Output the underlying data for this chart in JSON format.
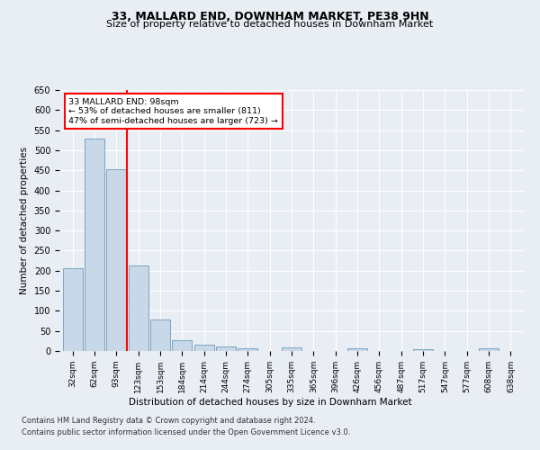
{
  "title": "33, MALLARD END, DOWNHAM MARKET, PE38 9HN",
  "subtitle": "Size of property relative to detached houses in Downham Market",
  "xlabel": "Distribution of detached houses by size in Downham Market",
  "ylabel": "Number of detached properties",
  "footnote1": "Contains HM Land Registry data © Crown copyright and database right 2024.",
  "footnote2": "Contains public sector information licensed under the Open Government Licence v3.0.",
  "categories": [
    "32sqm",
    "62sqm",
    "93sqm",
    "123sqm",
    "153sqm",
    "184sqm",
    "214sqm",
    "244sqm",
    "274sqm",
    "305sqm",
    "335sqm",
    "365sqm",
    "396sqm",
    "426sqm",
    "456sqm",
    "487sqm",
    "517sqm",
    "547sqm",
    "577sqm",
    "608sqm",
    "638sqm"
  ],
  "values": [
    207,
    530,
    452,
    212,
    78,
    26,
    15,
    12,
    7,
    0,
    8,
    0,
    0,
    6,
    0,
    0,
    5,
    0,
    0,
    6,
    0
  ],
  "bar_color": "#c8d8e8",
  "bar_edge_color": "#5a8ab0",
  "property_bin_index": 2,
  "vline_color": "red",
  "annotation_text": "33 MALLARD END: 98sqm\n← 53% of detached houses are smaller (811)\n47% of semi-detached houses are larger (723) →",
  "annotation_box_color": "white",
  "annotation_box_edge": "red",
  "ylim": [
    0,
    650
  ],
  "yticks": [
    0,
    50,
    100,
    150,
    200,
    250,
    300,
    350,
    400,
    450,
    500,
    550,
    600,
    650
  ],
  "background_color": "#e8eef4",
  "plot_background": "#e8eef4",
  "grid_color": "white",
  "title_fontsize": 9,
  "subtitle_fontsize": 8
}
